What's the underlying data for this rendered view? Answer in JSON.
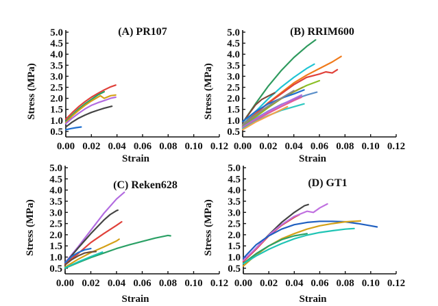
{
  "chart_data": [
    {
      "type": "line",
      "title": "(A) PR107",
      "xlabel": "Strain",
      "ylabel": "Stress (MPa)",
      "xlim": [
        0,
        0.12
      ],
      "ylim": [
        0.25,
        5.0
      ],
      "xticks": [
        "0.00",
        "0.02",
        "0.04",
        "0.06",
        "0.08",
        "0.10",
        "0.12"
      ],
      "yticks": [
        "0.5",
        "1.0",
        "1.5",
        "2.0",
        "2.5",
        "3.0",
        "3.5",
        "4.0",
        "4.5",
        "5.0"
      ],
      "grid": false,
      "series": [
        {
          "name": "red",
          "color": "#e0413a",
          "x": [
            0,
            0.005,
            0.01,
            0.015,
            0.02,
            0.025,
            0.03,
            0.035,
            0.039
          ],
          "y": [
            1.05,
            1.35,
            1.62,
            1.85,
            2.05,
            2.22,
            2.38,
            2.52,
            2.6
          ]
        },
        {
          "name": "green",
          "color": "#2aa065",
          "x": [
            0,
            0.005,
            0.01,
            0.015,
            0.02,
            0.025,
            0.03
          ],
          "y": [
            0.95,
            1.25,
            1.52,
            1.75,
            1.95,
            2.15,
            2.3
          ]
        },
        {
          "name": "gold",
          "color": "#d4a017",
          "x": [
            0,
            0.005,
            0.01,
            0.015,
            0.02,
            0.025,
            0.027,
            0.03,
            0.035,
            0.039
          ],
          "y": [
            0.9,
            1.2,
            1.45,
            1.68,
            1.88,
            2.05,
            2.12,
            2.0,
            2.12,
            2.15
          ]
        },
        {
          "name": "violet",
          "color": "#b26be0",
          "x": [
            0,
            0.005,
            0.01,
            0.015,
            0.02,
            0.025,
            0.03,
            0.035,
            0.039
          ],
          "y": [
            0.85,
            1.1,
            1.32,
            1.52,
            1.68,
            1.8,
            1.9,
            2.0,
            2.05
          ]
        },
        {
          "name": "black",
          "color": "#444444",
          "x": [
            0,
            0.005,
            0.01,
            0.015,
            0.02,
            0.025,
            0.03,
            0.036
          ],
          "y": [
            0.7,
            0.92,
            1.1,
            1.24,
            1.36,
            1.46,
            1.55,
            1.64
          ]
        },
        {
          "name": "blue",
          "color": "#1f6fd0",
          "x": [
            0,
            0.004,
            0.008,
            0.012
          ],
          "y": [
            0.58,
            0.63,
            0.67,
            0.7
          ]
        }
      ]
    },
    {
      "type": "line",
      "title": "(B) RRIM600",
      "xlabel": "Strain",
      "ylabel": "Stress (MPa)",
      "xlim": [
        0,
        0.12
      ],
      "ylim": [
        0.25,
        5.0
      ],
      "xticks": [
        "0.00",
        "0.02",
        "0.04",
        "0.06",
        "0.08",
        "0.10",
        "0.12"
      ],
      "yticks": [
        "0.5",
        "1.0",
        "1.5",
        "2.0",
        "2.5",
        "3.0",
        "3.5",
        "4.0",
        "4.5",
        "5.0"
      ],
      "grid": false,
      "series": [
        {
          "name": "dark-green",
          "color": "#2e9a5e",
          "x": [
            0,
            0.01,
            0.02,
            0.03,
            0.04,
            0.05,
            0.057
          ],
          "y": [
            0.9,
            1.75,
            2.55,
            3.25,
            3.85,
            4.35,
            4.65
          ]
        },
        {
          "name": "cyan",
          "color": "#1fc4d4",
          "x": [
            0,
            0.01,
            0.02,
            0.03,
            0.04,
            0.05,
            0.056
          ],
          "y": [
            0.8,
            1.4,
            1.98,
            2.5,
            2.95,
            3.35,
            3.55
          ]
        },
        {
          "name": "orange",
          "color": "#f07a1a",
          "x": [
            0,
            0.01,
            0.02,
            0.03,
            0.04,
            0.05,
            0.06,
            0.07,
            0.077
          ],
          "y": [
            0.75,
            1.3,
            1.8,
            2.25,
            2.7,
            3.05,
            3.35,
            3.65,
            3.9
          ]
        },
        {
          "name": "red",
          "color": "#e0413a",
          "x": [
            0,
            0.01,
            0.02,
            0.03,
            0.04,
            0.05,
            0.06,
            0.065,
            0.07,
            0.074
          ],
          "y": [
            0.8,
            1.3,
            1.78,
            2.2,
            2.62,
            2.95,
            3.1,
            3.2,
            3.15,
            3.3
          ]
        },
        {
          "name": "lime",
          "color": "#8cbf26",
          "x": [
            0,
            0.01,
            0.02,
            0.03,
            0.04,
            0.05,
            0.06
          ],
          "y": [
            0.7,
            1.15,
            1.58,
            1.98,
            2.3,
            2.58,
            2.8
          ]
        },
        {
          "name": "brown",
          "color": "#7a4a3a",
          "x": [
            0,
            0.005,
            0.01,
            0.015,
            0.02,
            0.025
          ],
          "y": [
            0.9,
            1.3,
            1.7,
            1.95,
            2.1,
            2.25
          ]
        },
        {
          "name": "olive",
          "color": "#9aa12a",
          "x": [
            0,
            0.01,
            0.02,
            0.03,
            0.04,
            0.047
          ],
          "y": [
            0.72,
            1.2,
            1.62,
            1.98,
            2.3,
            2.5
          ]
        },
        {
          "name": "blue",
          "color": "#1f6fd0",
          "x": [
            0,
            0.01,
            0.02,
            0.03,
            0.04,
            0.048
          ],
          "y": [
            0.95,
            1.4,
            1.75,
            2.0,
            2.2,
            2.38
          ]
        },
        {
          "name": "steel-blue",
          "color": "#5b8fc9",
          "x": [
            0,
            0.01,
            0.02,
            0.03,
            0.04,
            0.05,
            0.058
          ],
          "y": [
            0.7,
            1.08,
            1.42,
            1.72,
            1.95,
            2.15,
            2.28
          ]
        },
        {
          "name": "violet",
          "color": "#b26be0",
          "x": [
            0,
            0.01,
            0.02,
            0.03,
            0.04,
            0.046
          ],
          "y": [
            0.68,
            1.05,
            1.4,
            1.7,
            1.98,
            2.15
          ]
        },
        {
          "name": "pink",
          "color": "#e05a9a",
          "x": [
            0,
            0.01,
            0.02,
            0.03,
            0.04,
            0.046
          ],
          "y": [
            0.65,
            1.0,
            1.32,
            1.62,
            1.9,
            2.05
          ]
        },
        {
          "name": "grey",
          "color": "#888888",
          "x": [
            0,
            0.01,
            0.02,
            0.03,
            0.04
          ],
          "y": [
            0.8,
            1.25,
            1.65,
            2.0,
            2.35
          ]
        },
        {
          "name": "light-cyan",
          "color": "#2ec9c0",
          "x": [
            0,
            0.01,
            0.02,
            0.03,
            0.04,
            0.048
          ],
          "y": [
            0.62,
            0.95,
            1.22,
            1.45,
            1.62,
            1.75
          ]
        },
        {
          "name": "light-orange",
          "color": "#f5a04a",
          "x": [
            0,
            0.01,
            0.02,
            0.03,
            0.035
          ],
          "y": [
            0.58,
            0.92,
            1.2,
            1.48,
            1.62
          ]
        }
      ]
    },
    {
      "type": "line",
      "title": "(C) Reken628",
      "xlabel": "Strain",
      "ylabel": "Stress (MPa)",
      "xlim": [
        0,
        0.12
      ],
      "ylim": [
        0.25,
        5.0
      ],
      "xticks": [
        "0.00",
        "0.02",
        "0.04",
        "0.06",
        "0.08",
        "0.10",
        "0.12"
      ],
      "yticks": [
        "0.5",
        "1.0",
        "1.5",
        "2.0",
        "2.5",
        "3.0",
        "3.5",
        "4.0",
        "4.5",
        "5.0"
      ],
      "grid": false,
      "series": [
        {
          "name": "violet",
          "color": "#b26be0",
          "x": [
            0,
            0.01,
            0.02,
            0.03,
            0.04,
            0.046
          ],
          "y": [
            0.75,
            1.45,
            2.2,
            2.95,
            3.6,
            3.9
          ]
        },
        {
          "name": "black",
          "color": "#444444",
          "x": [
            0,
            0.01,
            0.02,
            0.03,
            0.035,
            0.04,
            0.041
          ],
          "y": [
            0.72,
            1.4,
            2.05,
            2.65,
            2.9,
            3.08,
            3.1
          ]
        },
        {
          "name": "red",
          "color": "#e0413a",
          "x": [
            0,
            0.01,
            0.02,
            0.03,
            0.04,
            0.044
          ],
          "y": [
            0.7,
            1.15,
            1.65,
            2.05,
            2.42,
            2.58
          ]
        },
        {
          "name": "gold",
          "color": "#d4a017",
          "x": [
            0,
            0.01,
            0.02,
            0.03,
            0.04,
            0.042
          ],
          "y": [
            0.55,
            0.9,
            1.2,
            1.45,
            1.72,
            1.8
          ]
        },
        {
          "name": "green",
          "color": "#2aa065",
          "x": [
            0,
            0.01,
            0.02,
            0.03,
            0.04,
            0.05,
            0.06,
            0.07,
            0.08,
            0.082
          ],
          "y": [
            0.5,
            0.75,
            0.98,
            1.18,
            1.38,
            1.55,
            1.7,
            1.85,
            1.97,
            1.95
          ]
        },
        {
          "name": "blue",
          "color": "#1f6fd0",
          "x": [
            0,
            0.005,
            0.01,
            0.015,
            0.02
          ],
          "y": [
            0.75,
            1.02,
            1.2,
            1.32,
            1.38
          ]
        },
        {
          "name": "brown",
          "color": "#6a4a3a",
          "x": [
            0,
            0.005,
            0.01,
            0.015,
            0.02,
            0.024
          ],
          "y": [
            0.65,
            0.88,
            1.05,
            1.18,
            1.23,
            1.25
          ]
        },
        {
          "name": "cyan",
          "color": "#1fc4b4",
          "x": [
            0,
            0.01,
            0.02,
            0.029
          ],
          "y": [
            0.52,
            0.78,
            1.02,
            1.22
          ]
        }
      ]
    },
    {
      "type": "line",
      "title": "(D) GT1",
      "xlabel": "Strain",
      "ylabel": "Stress (MPa)",
      "xlim": [
        0,
        0.12
      ],
      "ylim": [
        0.25,
        5.0
      ],
      "xticks": [
        "0.00",
        "0.02",
        "0.04",
        "0.06",
        "0.08",
        "0.10",
        "0.12"
      ],
      "yticks": [
        "0.5",
        "1.0",
        "1.5",
        "2.0",
        "2.5",
        "3.0",
        "3.5",
        "4.0",
        "4.5",
        "5.0"
      ],
      "grid": false,
      "series": [
        {
          "name": "black",
          "color": "#444444",
          "x": [
            0,
            0.01,
            0.02,
            0.03,
            0.04,
            0.048,
            0.051
          ],
          "y": [
            0.8,
            1.4,
            2.0,
            2.55,
            3.0,
            3.3,
            3.35
          ]
        },
        {
          "name": "red",
          "color": "#e0413a",
          "x": [
            0,
            0.01,
            0.02,
            0.03,
            0.04,
            0.044
          ],
          "y": [
            0.8,
            1.35,
            1.95,
            2.42,
            2.78,
            2.9
          ]
        },
        {
          "name": "violet",
          "color": "#c070e0",
          "x": [
            0,
            0.01,
            0.02,
            0.03,
            0.04,
            0.05,
            0.055,
            0.06,
            0.066
          ],
          "y": [
            0.85,
            1.4,
            1.98,
            2.45,
            2.82,
            3.05,
            3.0,
            3.2,
            3.38
          ]
        },
        {
          "name": "blue",
          "color": "#1f5fc0",
          "x": [
            0,
            0.01,
            0.02,
            0.03,
            0.04,
            0.05,
            0.06,
            0.07,
            0.08,
            0.09,
            0.1,
            0.105
          ],
          "y": [
            0.95,
            1.55,
            1.95,
            2.25,
            2.45,
            2.55,
            2.6,
            2.6,
            2.58,
            2.5,
            2.4,
            2.35
          ]
        },
        {
          "name": "gold",
          "color": "#d4a017",
          "x": [
            0,
            0.01,
            0.02,
            0.03,
            0.04,
            0.05,
            0.06,
            0.07,
            0.08,
            0.092
          ],
          "y": [
            0.6,
            1.1,
            1.5,
            1.82,
            2.05,
            2.25,
            2.4,
            2.5,
            2.58,
            2.62
          ]
        },
        {
          "name": "green",
          "color": "#2aa065",
          "x": [
            0,
            0.01,
            0.02,
            0.03,
            0.04,
            0.05
          ],
          "y": [
            0.72,
            1.15,
            1.5,
            1.78,
            1.95,
            2.05
          ]
        },
        {
          "name": "cyan",
          "color": "#1fc4b4",
          "x": [
            0,
            0.01,
            0.02,
            0.03,
            0.04,
            0.05,
            0.06,
            0.07,
            0.08,
            0.087
          ],
          "y": [
            0.7,
            1.05,
            1.35,
            1.6,
            1.82,
            1.98,
            2.1,
            2.18,
            2.25,
            2.28
          ]
        }
      ]
    }
  ]
}
